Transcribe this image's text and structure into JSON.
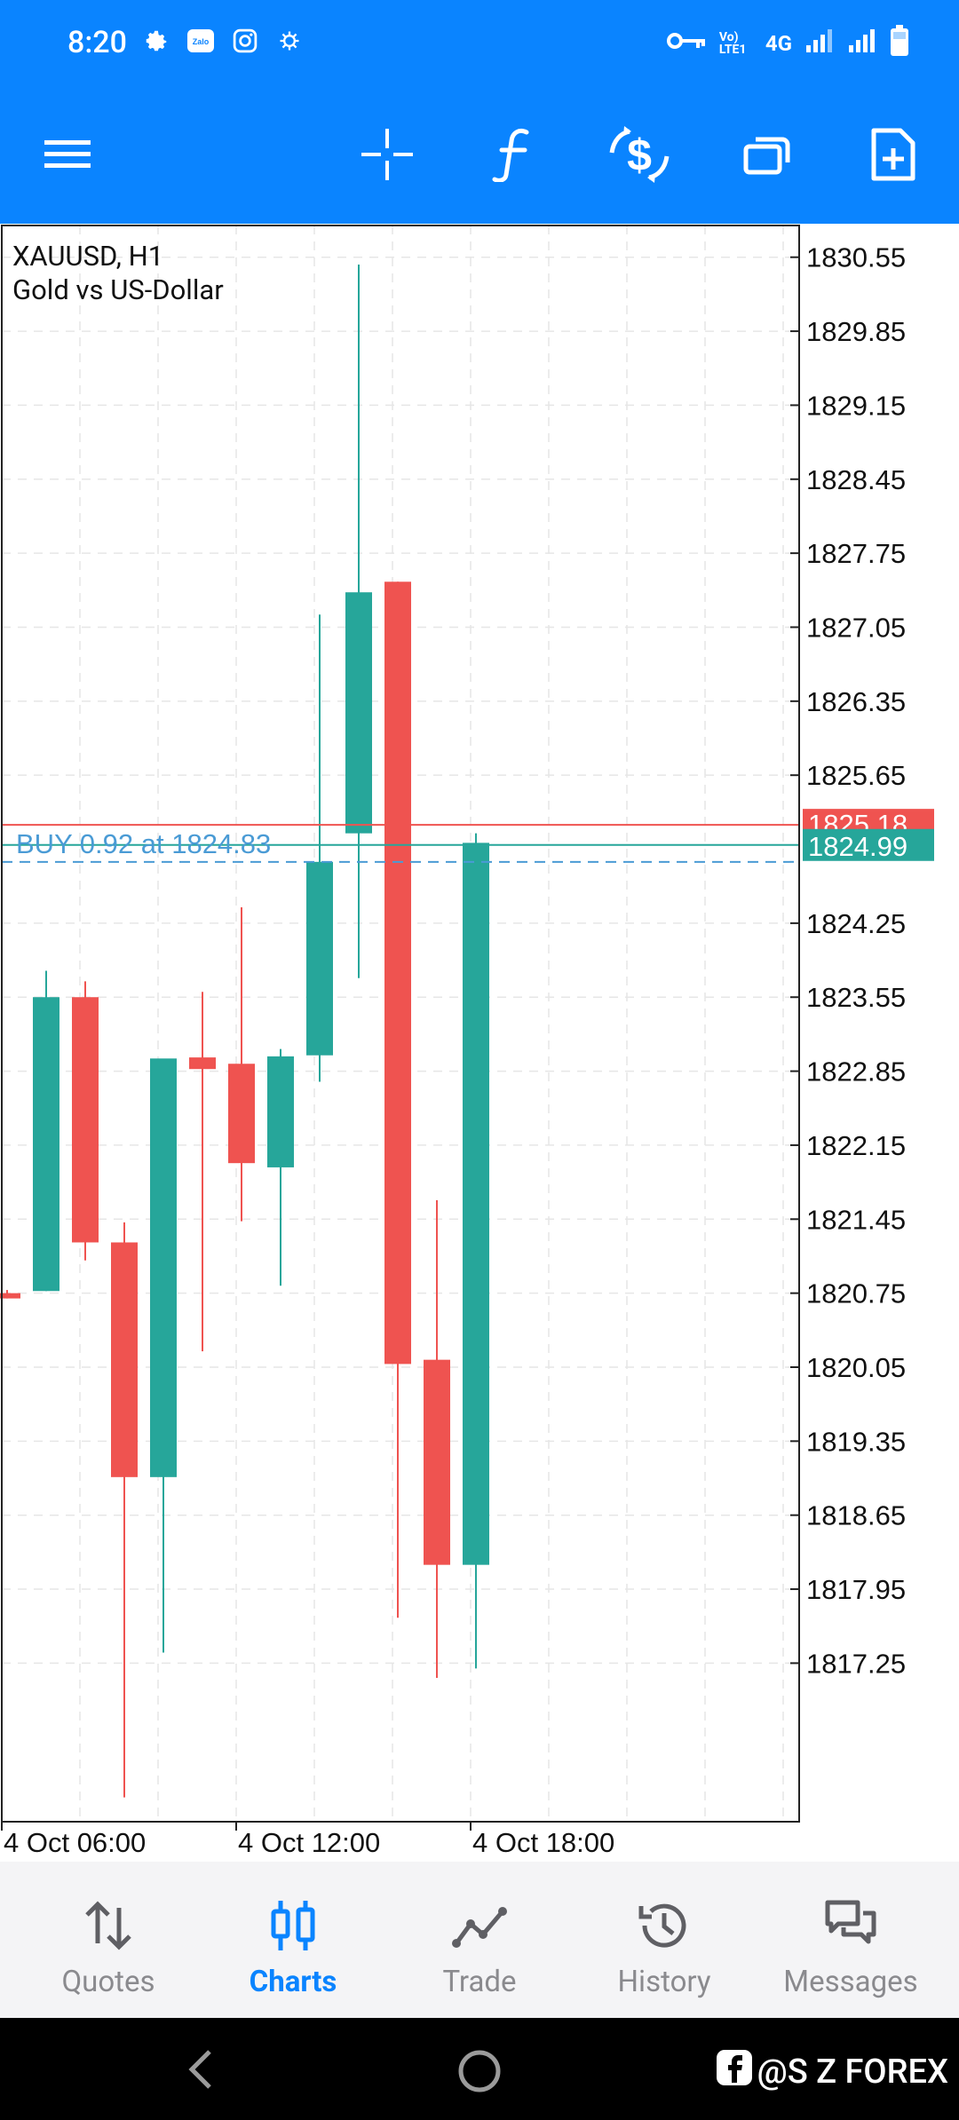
{
  "status_bar": {
    "time": "8:20",
    "network": "4G",
    "volte": "Vo) LTE1",
    "icons": [
      "gear-icon",
      "zalo-icon",
      "instagram-icon",
      "bug-icon",
      "key-icon",
      "signal-icon",
      "battery-icon"
    ]
  },
  "toolbar": {
    "buttons": [
      "menu-icon",
      "crosshair-icon",
      "indicator-f-icon",
      "new-order-icon",
      "windows-icon",
      "template-icon"
    ]
  },
  "chart": {
    "symbol": "XAUUSD, H1",
    "description": "Gold vs US-Dollar",
    "buy_label": "BUY 0.92 at 1824.83",
    "ask_price": "1825.18",
    "bid_price": "1824.99",
    "colors": {
      "bull": "#26a69a",
      "bear": "#ef5350",
      "grid": "#e6e6e6",
      "trade": "#4a9bd5"
    }
  },
  "chart_data": {
    "type": "candlestick",
    "y_ticks": [
      "1830.55",
      "1829.85",
      "1829.15",
      "1828.45",
      "1827.75",
      "1827.05",
      "1826.35",
      "1825.65",
      "1824.25",
      "1823.55",
      "1822.85",
      "1822.15",
      "1821.45",
      "1820.75",
      "1820.05",
      "1819.35",
      "1818.65",
      "1817.95",
      "1817.25"
    ],
    "x_ticks": [
      "4 Oct 06:00",
      "4 Oct 12:00",
      "4 Oct 18:00"
    ],
    "ylim": [
      1815.75,
      1830.85
    ],
    "ask": 1825.18,
    "bid": 1824.99,
    "buy_price": 1824.83,
    "candles": [
      {
        "o": 1820.75,
        "h": 1820.78,
        "l": 1820.7,
        "c": 1820.7
      },
      {
        "o": 1820.77,
        "h": 1823.8,
        "l": 1820.77,
        "c": 1823.55
      },
      {
        "o": 1823.55,
        "h": 1823.7,
        "l": 1821.06,
        "c": 1821.23
      },
      {
        "o": 1821.23,
        "h": 1821.42,
        "l": 1815.98,
        "c": 1819.01
      },
      {
        "o": 1819.01,
        "h": 1822.92,
        "l": 1817.35,
        "c": 1822.97
      },
      {
        "o": 1822.98,
        "h": 1823.6,
        "l": 1820.2,
        "c": 1822.87
      },
      {
        "o": 1822.92,
        "h": 1824.4,
        "l": 1821.43,
        "c": 1821.98
      },
      {
        "o": 1821.94,
        "h": 1823.06,
        "l": 1820.82,
        "c": 1822.99
      },
      {
        "o": 1823.0,
        "h": 1827.17,
        "l": 1822.75,
        "c": 1824.83
      },
      {
        "o": 1825.1,
        "h": 1830.48,
        "l": 1823.73,
        "c": 1827.38
      },
      {
        "o": 1827.48,
        "h": 1827.48,
        "l": 1817.68,
        "c": 1820.08
      },
      {
        "o": 1820.12,
        "h": 1821.63,
        "l": 1817.11,
        "c": 1818.18
      },
      {
        "o": 1818.18,
        "h": 1825.1,
        "l": 1817.2,
        "c": 1825.01
      }
    ]
  },
  "bottom_nav": {
    "quotes": "Quotes",
    "charts": "Charts",
    "trade": "Trade",
    "history": "History",
    "messages": "Messages"
  },
  "system_nav": {
    "watermark": "@S Z FOREX"
  }
}
